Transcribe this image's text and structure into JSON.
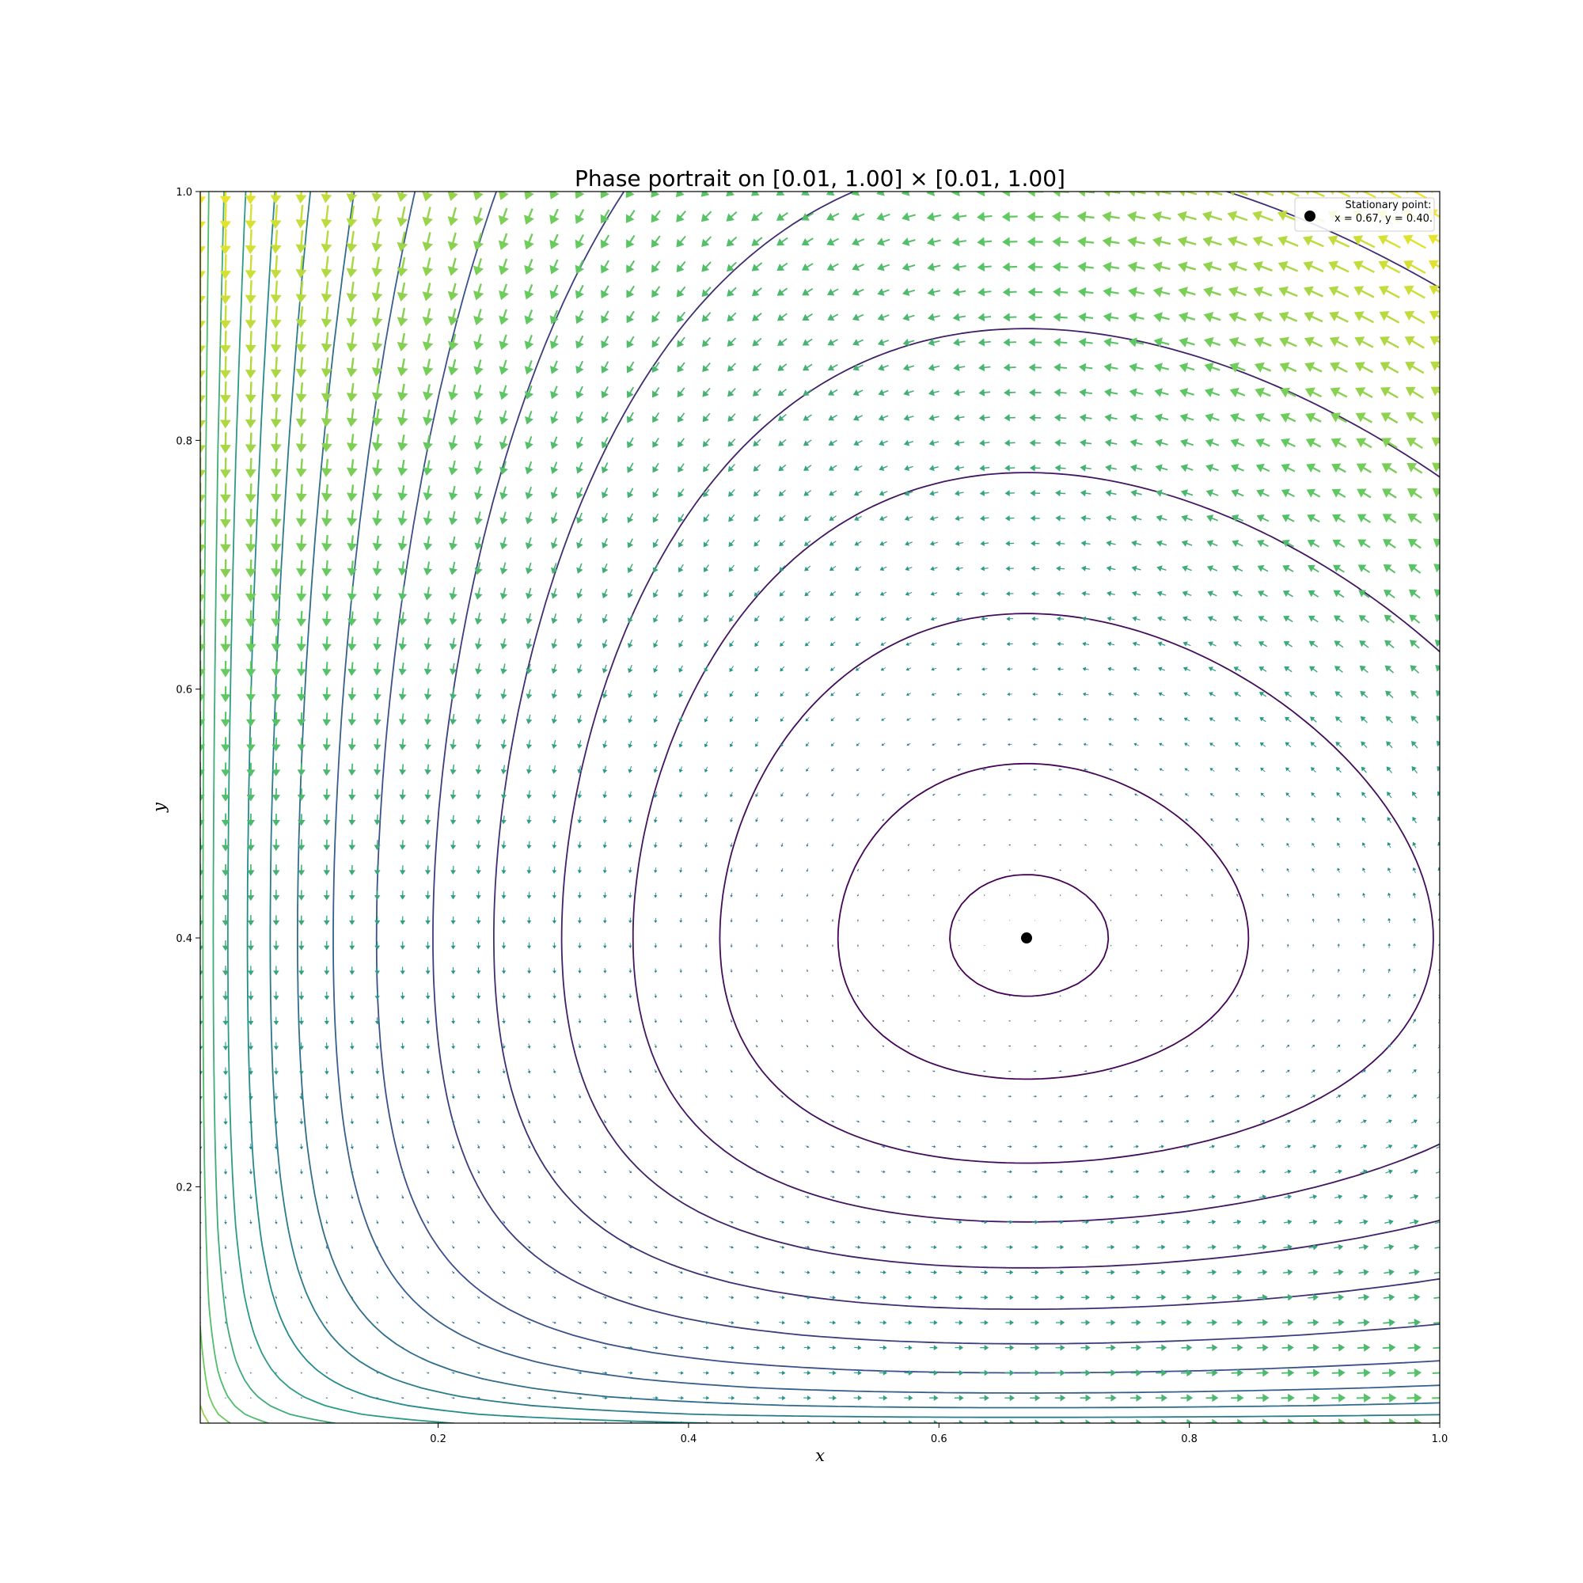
{
  "chart_data": {
    "type": "phase_portrait",
    "title": "Phase portrait on [0.01, 1.00] × [0.01, 1.00]",
    "xlabel": "x",
    "ylabel": "y",
    "xlim": [
      0.01,
      1.0
    ],
    "ylim": [
      0.01,
      1.0
    ],
    "xticks": [
      {
        "value": 0.2,
        "label": "0.2"
      },
      {
        "value": 0.4,
        "label": "0.4"
      },
      {
        "value": 0.6,
        "label": "0.6"
      },
      {
        "value": 0.8,
        "label": "0.8"
      },
      {
        "value": 1.0,
        "label": "1.0"
      }
    ],
    "yticks": [
      {
        "value": 0.2,
        "label": "0.2"
      },
      {
        "value": 0.4,
        "label": "0.4"
      },
      {
        "value": 0.6,
        "label": "0.6"
      },
      {
        "value": 0.8,
        "label": "0.8"
      },
      {
        "value": 1.0,
        "label": "1.0"
      }
    ],
    "grid": false,
    "colormap": [
      "#440154",
      "#3b528b",
      "#21918c",
      "#5ec962",
      "#fde725"
    ],
    "stationary_point": {
      "x": 0.67,
      "y": 0.4,
      "color": "#000000"
    },
    "legend": {
      "placement": "upper-right",
      "title": "Stationary point:",
      "entry": "x = 0.67, y = 0.40."
    },
    "contour_levels": [
      0.003,
      0.02,
      0.06,
      0.11,
      0.17,
      0.25,
      0.35,
      0.48,
      0.62,
      0.78,
      0.95,
      1.15,
      1.4,
      1.7,
      2.05,
      2.45,
      2.9,
      3.4,
      4.0
    ]
  }
}
